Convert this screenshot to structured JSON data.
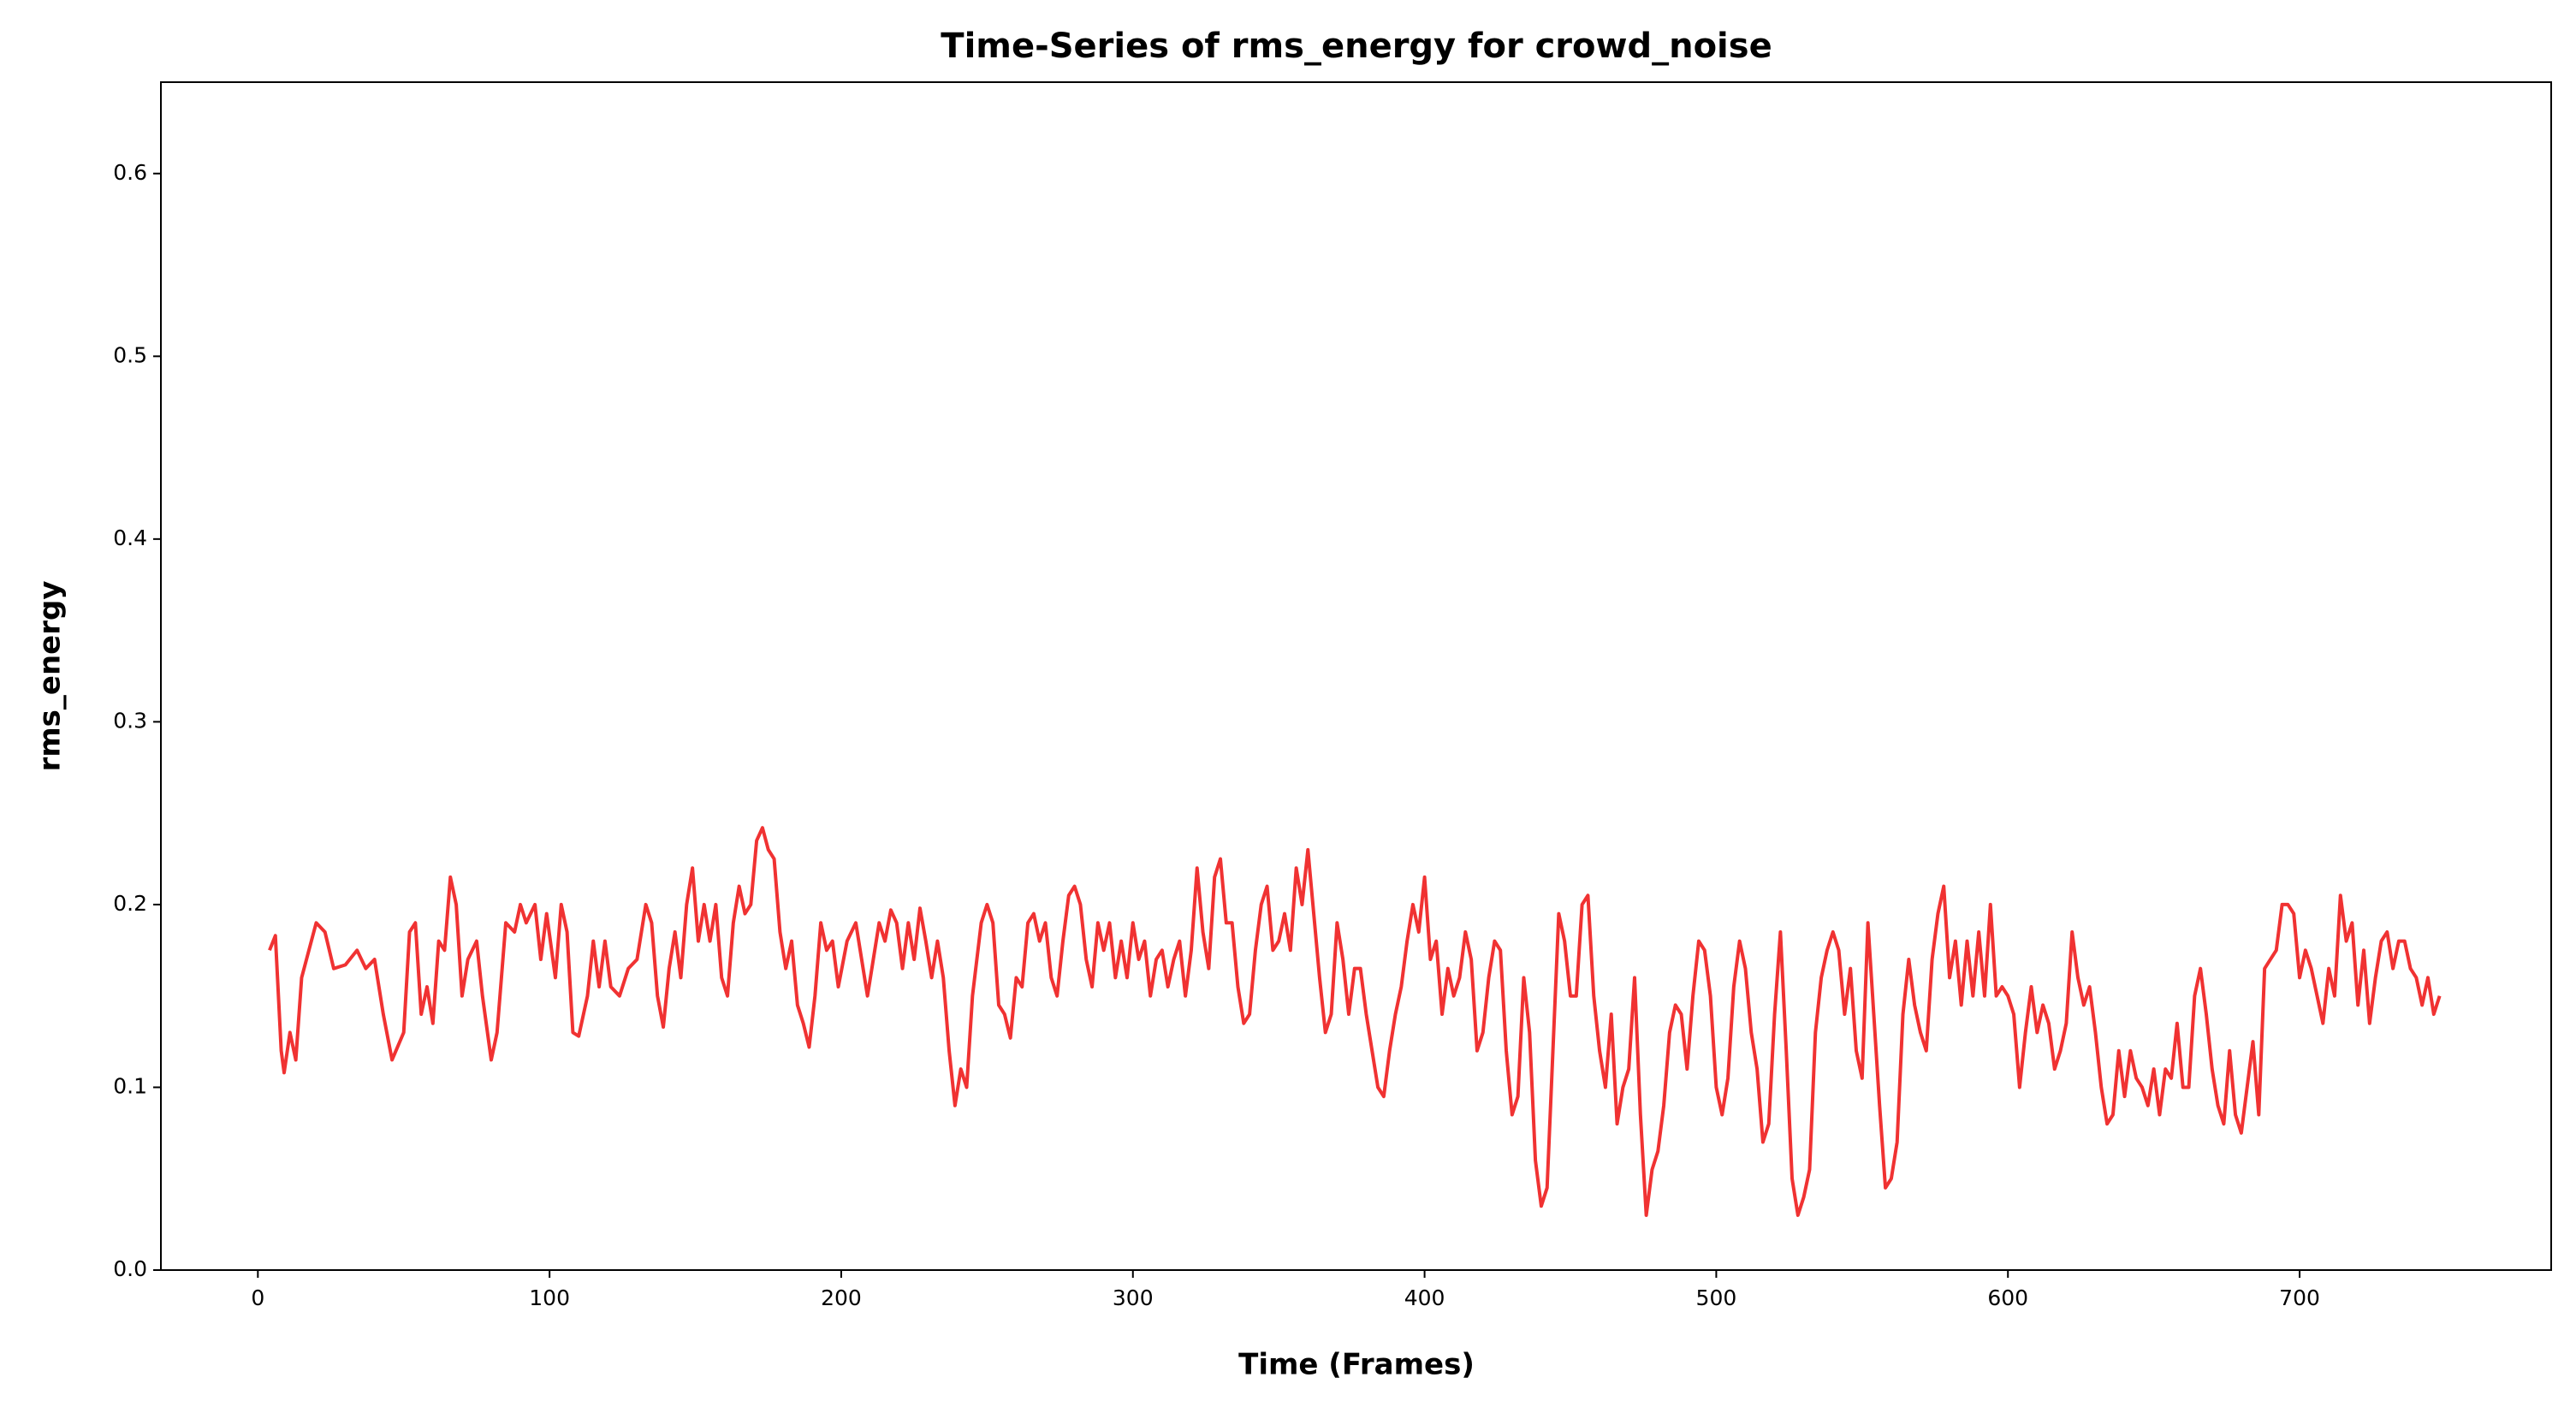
{
  "chart_data": {
    "type": "line",
    "title": "Time-Series of rms_energy for crowd_noise",
    "xlabel": "Time (Frames)",
    "ylabel": "rms_energy",
    "x": [
      4,
      6,
      8,
      9,
      11,
      13,
      15,
      20,
      23,
      26,
      30,
      34,
      37,
      40,
      43,
      46,
      50,
      52,
      54,
      56,
      58,
      60,
      62,
      64,
      66,
      68,
      70,
      72,
      75,
      77,
      80,
      82,
      85,
      88,
      90,
      92,
      95,
      97,
      99,
      102,
      104,
      106,
      108,
      110,
      113,
      115,
      117,
      119,
      121,
      124,
      127,
      130,
      133,
      135,
      137,
      139,
      141,
      143,
      145,
      147,
      149,
      151,
      153,
      155,
      157,
      159,
      161,
      163,
      165,
      167,
      169,
      171,
      173,
      175,
      177,
      179,
      181,
      183,
      185,
      187,
      189,
      191,
      193,
      195,
      197,
      199,
      202,
      205,
      207,
      209,
      211,
      213,
      215,
      217,
      219,
      221,
      223,
      225,
      227,
      229,
      231,
      233,
      235,
      237,
      239,
      241,
      243,
      245,
      248,
      250,
      252,
      254,
      256,
      258,
      260,
      262,
      264,
      266,
      268,
      270,
      272,
      274,
      276,
      278,
      280,
      282,
      284,
      286,
      288,
      290,
      292,
      294,
      296,
      298,
      300,
      302,
      304,
      306,
      308,
      310,
      312,
      314,
      316,
      318,
      320,
      322,
      324,
      326,
      328,
      330,
      332,
      334,
      336,
      338,
      340,
      342,
      344,
      346,
      348,
      350,
      352,
      354,
      356,
      358,
      360,
      362,
      364,
      366,
      368,
      370,
      372,
      374,
      376,
      378,
      380,
      382,
      384,
      386,
      388,
      390,
      392,
      394,
      396,
      398,
      400,
      402,
      404,
      406,
      408,
      410,
      412,
      414,
      416,
      418,
      420,
      422,
      424,
      426,
      428,
      430,
      432,
      434,
      436,
      438,
      440,
      442,
      444,
      446,
      448,
      450,
      452,
      454,
      456,
      458,
      460,
      462,
      464,
      466,
      468,
      470,
      472,
      474,
      476,
      478,
      480,
      482,
      484,
      486,
      488,
      490,
      492,
      494,
      496,
      498,
      500,
      502,
      504,
      506,
      508,
      510,
      512,
      514,
      516,
      518,
      520,
      522,
      524,
      526,
      528,
      530,
      532,
      534,
      536,
      538,
      540,
      542,
      544,
      546,
      548,
      550,
      552,
      554,
      556,
      558,
      560,
      562,
      564,
      566,
      568,
      570,
      572,
      574,
      576,
      578,
      580,
      582,
      584,
      586,
      588,
      590,
      592,
      594,
      596,
      598,
      600,
      602,
      604,
      606,
      608,
      610,
      612,
      614,
      616,
      618,
      620,
      622,
      624,
      626,
      628,
      630,
      632,
      634,
      636,
      638,
      640,
      642,
      644,
      646,
      648,
      650,
      652,
      654,
      656,
      658,
      660,
      662,
      664,
      666,
      668,
      670,
      672,
      674,
      676,
      678,
      680,
      682,
      684,
      686,
      688,
      690,
      692,
      694,
      696,
      698,
      700,
      702,
      704,
      706,
      708,
      710,
      712,
      714,
      716,
      718,
      720,
      722,
      724,
      726,
      728,
      730,
      732,
      734,
      736,
      738,
      740,
      742,
      744,
      746,
      748
    ],
    "series": [
      {
        "name": "rms_energy",
        "color": "#f03232",
        "values": [
          0.175,
          0.183,
          0.12,
          0.108,
          0.13,
          0.115,
          0.16,
          0.19,
          0.185,
          0.165,
          0.167,
          0.175,
          0.165,
          0.17,
          0.14,
          0.115,
          0.13,
          0.185,
          0.19,
          0.14,
          0.155,
          0.135,
          0.18,
          0.175,
          0.215,
          0.2,
          0.15,
          0.17,
          0.18,
          0.15,
          0.115,
          0.13,
          0.19,
          0.185,
          0.2,
          0.19,
          0.2,
          0.17,
          0.195,
          0.16,
          0.2,
          0.185,
          0.13,
          0.128,
          0.15,
          0.18,
          0.155,
          0.18,
          0.155,
          0.15,
          0.165,
          0.17,
          0.2,
          0.19,
          0.15,
          0.133,
          0.165,
          0.185,
          0.16,
          0.2,
          0.22,
          0.18,
          0.2,
          0.18,
          0.2,
          0.16,
          0.15,
          0.19,
          0.21,
          0.195,
          0.2,
          0.235,
          0.242,
          0.23,
          0.225,
          0.185,
          0.165,
          0.18,
          0.145,
          0.135,
          0.122,
          0.15,
          0.19,
          0.175,
          0.18,
          0.155,
          0.18,
          0.19,
          0.17,
          0.15,
          0.17,
          0.19,
          0.18,
          0.197,
          0.19,
          0.165,
          0.19,
          0.17,
          0.198,
          0.18,
          0.16,
          0.18,
          0.16,
          0.12,
          0.09,
          0.11,
          0.1,
          0.15,
          0.19,
          0.2,
          0.19,
          0.145,
          0.14,
          0.127,
          0.16,
          0.155,
          0.19,
          0.195,
          0.18,
          0.19,
          0.16,
          0.15,
          0.18,
          0.205,
          0.21,
          0.2,
          0.17,
          0.155,
          0.19,
          0.175,
          0.19,
          0.16,
          0.18,
          0.16,
          0.19,
          0.17,
          0.18,
          0.15,
          0.17,
          0.175,
          0.155,
          0.17,
          0.18,
          0.15,
          0.175,
          0.22,
          0.185,
          0.165,
          0.215,
          0.225,
          0.19,
          0.19,
          0.155,
          0.135,
          0.14,
          0.175,
          0.2,
          0.21,
          0.175,
          0.18,
          0.195,
          0.175,
          0.22,
          0.2,
          0.23,
          0.195,
          0.16,
          0.13,
          0.14,
          0.19,
          0.17,
          0.14,
          0.165,
          0.165,
          0.14,
          0.12,
          0.1,
          0.095,
          0.12,
          0.14,
          0.155,
          0.18,
          0.2,
          0.185,
          0.215,
          0.17,
          0.18,
          0.14,
          0.165,
          0.15,
          0.16,
          0.185,
          0.17,
          0.12,
          0.13,
          0.16,
          0.18,
          0.175,
          0.12,
          0.085,
          0.095,
          0.16,
          0.13,
          0.06,
          0.035,
          0.045,
          0.12,
          0.195,
          0.18,
          0.15,
          0.15,
          0.2,
          0.205,
          0.15,
          0.12,
          0.1,
          0.14,
          0.08,
          0.1,
          0.11,
          0.16,
          0.085,
          0.03,
          0.055,
          0.065,
          0.09,
          0.13,
          0.145,
          0.14,
          0.11,
          0.15,
          0.18,
          0.175,
          0.15,
          0.1,
          0.085,
          0.105,
          0.155,
          0.18,
          0.165,
          0.13,
          0.11,
          0.07,
          0.08,
          0.14,
          0.185,
          0.12,
          0.05,
          0.03,
          0.04,
          0.055,
          0.13,
          0.16,
          0.175,
          0.185,
          0.175,
          0.14,
          0.165,
          0.12,
          0.105,
          0.19,
          0.14,
          0.09,
          0.045,
          0.05,
          0.07,
          0.14,
          0.17,
          0.145,
          0.13,
          0.12,
          0.17,
          0.195,
          0.21,
          0.16,
          0.18,
          0.145,
          0.18,
          0.15,
          0.185,
          0.15,
          0.2,
          0.15,
          0.155,
          0.15,
          0.14,
          0.1,
          0.13,
          0.155,
          0.13,
          0.145,
          0.135,
          0.11,
          0.12,
          0.135,
          0.185,
          0.16,
          0.145,
          0.155,
          0.13,
          0.1,
          0.08,
          0.085,
          0.12,
          0.095,
          0.12,
          0.105,
          0.1,
          0.09,
          0.11,
          0.085,
          0.11,
          0.105,
          0.135,
          0.1,
          0.1,
          0.15,
          0.165,
          0.14,
          0.11,
          0.09,
          0.08,
          0.12,
          0.085,
          0.075,
          0.1,
          0.125,
          0.085,
          0.165,
          0.17,
          0.175,
          0.2,
          0.2,
          0.195,
          0.16,
          0.175,
          0.165,
          0.15,
          0.135,
          0.165,
          0.15,
          0.205,
          0.18,
          0.19,
          0.145,
          0.175,
          0.135,
          0.16,
          0.18,
          0.185,
          0.165,
          0.18,
          0.18,
          0.165,
          0.16,
          0.145,
          0.16,
          0.14,
          0.15
        ]
      }
    ],
    "xlim": [
      -33.25,
      786.25
    ],
    "xticks": [
      0,
      100,
      200,
      300,
      400,
      500,
      600,
      700
    ],
    "ylim": [
      0,
      0.65
    ],
    "yticks": [
      {
        "value": 0,
        "label": "0.0"
      },
      0.1,
      0.2,
      0.3,
      0.4,
      0.5,
      0.6
    ],
    "grid": false
  }
}
